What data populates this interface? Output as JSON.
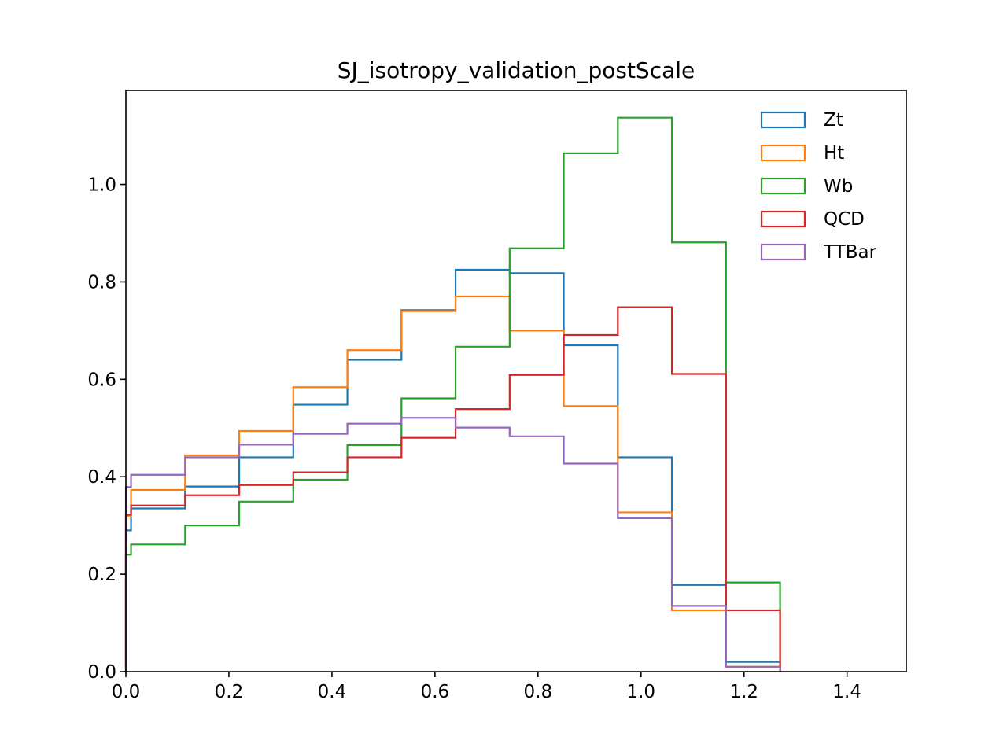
{
  "chart_data": {
    "type": "histogram-step",
    "title": "SJ_isotropy_validation_postScale",
    "xlabel": "",
    "ylabel": "",
    "xlim": [
      0.0,
      1.515
    ],
    "ylim": [
      0.0,
      1.193
    ],
    "grid": false,
    "legend_position": "top-right",
    "x_ticks": [
      {
        "value": 0.0,
        "label": "0.0"
      },
      {
        "value": 0.2,
        "label": "0.2"
      },
      {
        "value": 0.4,
        "label": "0.4"
      },
      {
        "value": 0.6,
        "label": "0.6"
      },
      {
        "value": 0.8,
        "label": "0.8"
      },
      {
        "value": 1.0,
        "label": "1.0"
      },
      {
        "value": 1.2,
        "label": "1.2"
      },
      {
        "value": 1.4,
        "label": "1.4"
      }
    ],
    "y_ticks": [
      {
        "value": 0.0,
        "label": "0.0"
      },
      {
        "value": 0.2,
        "label": "0.2"
      },
      {
        "value": 0.4,
        "label": "0.4"
      },
      {
        "value": 0.6,
        "label": "0.6"
      },
      {
        "value": 0.8,
        "label": "0.8"
      },
      {
        "value": 1.0,
        "label": "1.0"
      }
    ],
    "bin_edges": [
      0.0,
      0.01,
      0.115,
      0.22,
      0.325,
      0.43,
      0.535,
      0.64,
      0.745,
      0.85,
      0.955,
      1.06,
      1.165,
      1.27
    ],
    "series": [
      {
        "name": "Zt",
        "color": "#1f77b4",
        "values": [
          0.29,
          0.335,
          0.38,
          0.44,
          0.548,
          0.64,
          0.742,
          0.825,
          0.818,
          0.67,
          0.44,
          0.178,
          0.02
        ]
      },
      {
        "name": "Ht",
        "color": "#ff7f0e",
        "values": [
          0.32,
          0.373,
          0.444,
          0.494,
          0.584,
          0.66,
          0.74,
          0.77,
          0.7,
          0.545,
          0.327,
          0.126,
          0.01
        ]
      },
      {
        "name": "Wb",
        "color": "#2ca02c",
        "values": [
          0.24,
          0.261,
          0.3,
          0.349,
          0.394,
          0.465,
          0.561,
          0.667,
          0.869,
          1.064,
          1.137,
          0.881,
          0.183
        ]
      },
      {
        "name": "QCD",
        "color": "#d62728",
        "values": [
          0.322,
          0.341,
          0.362,
          0.383,
          0.409,
          0.44,
          0.48,
          0.539,
          0.609,
          0.691,
          0.748,
          0.611,
          0.126
        ]
      },
      {
        "name": "TTBar",
        "color": "#9467bd",
        "values": [
          0.379,
          0.404,
          0.44,
          0.466,
          0.488,
          0.509,
          0.521,
          0.501,
          0.483,
          0.427,
          0.315,
          0.135,
          0.01
        ]
      }
    ]
  }
}
